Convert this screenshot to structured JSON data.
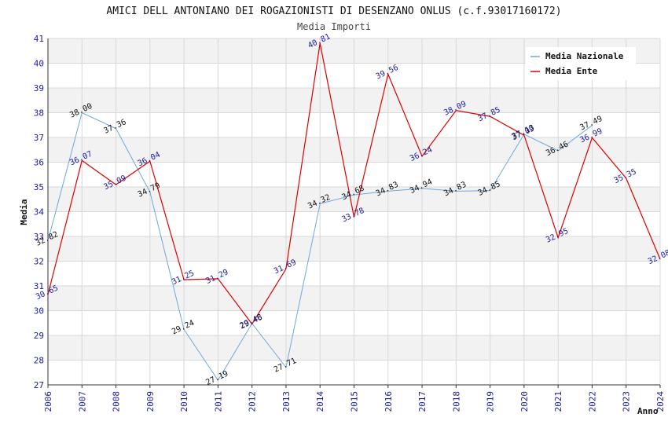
{
  "chart_data": {
    "type": "line",
    "title": "AMICI DELL ANTONIANO DEI ROGAZIONISTI DI DESENZANO ONLUS (c.f.93017160172)",
    "subtitle": "Media Importi",
    "xlabel": "Anno",
    "ylabel": "Media",
    "ylim": [
      27,
      41
    ],
    "yticks": [
      "27",
      "28",
      "29",
      "30",
      "31",
      "32",
      "33",
      "34",
      "35",
      "36",
      "37",
      "38",
      "39",
      "40",
      "41"
    ],
    "categories": [
      "2006",
      "2007",
      "2008",
      "2009",
      "2010",
      "2011",
      "2012",
      "2013",
      "2014",
      "2015",
      "2016",
      "2017",
      "2018",
      "2019",
      "2020",
      "2021",
      "2022",
      "2023",
      "2024"
    ],
    "legend_position": "top-right",
    "series": [
      {
        "name": "Media Nazionale",
        "color": "#6fa8dc",
        "values": [
          32.82,
          38.0,
          37.36,
          34.79,
          29.24,
          27.19,
          29.48,
          27.71,
          34.32,
          34.68,
          34.83,
          34.94,
          34.83,
          34.85,
          37.13,
          36.46,
          37.49,
          null,
          null
        ],
        "labels": [
          "32.82",
          "38.00",
          "37.36",
          "34.79",
          "29.24",
          "27.19",
          "29.48",
          "27.71",
          "34.32",
          "34.68",
          "34.83",
          "34.94",
          "34.83",
          "34.85",
          "37.13",
          "36.46",
          "37.49",
          null,
          null
        ]
      },
      {
        "name": "Media Ente",
        "color": "#dd0000",
        "values": [
          30.65,
          36.07,
          35.09,
          36.04,
          31.25,
          31.29,
          29.46,
          31.69,
          40.81,
          33.78,
          39.56,
          36.24,
          38.09,
          37.85,
          37.09,
          32.95,
          36.99,
          35.35,
          32.08
        ],
        "labels": [
          "30.65",
          "36.07",
          "35.09",
          "36.04",
          "31.25",
          "31.29",
          "29.46",
          "31.69",
          "40.81",
          "33.78",
          "39.56",
          "36.24",
          "38.09",
          "37.85",
          "37.09",
          "32.95",
          "36.99",
          "35.35",
          "32.08"
        ]
      }
    ]
  }
}
